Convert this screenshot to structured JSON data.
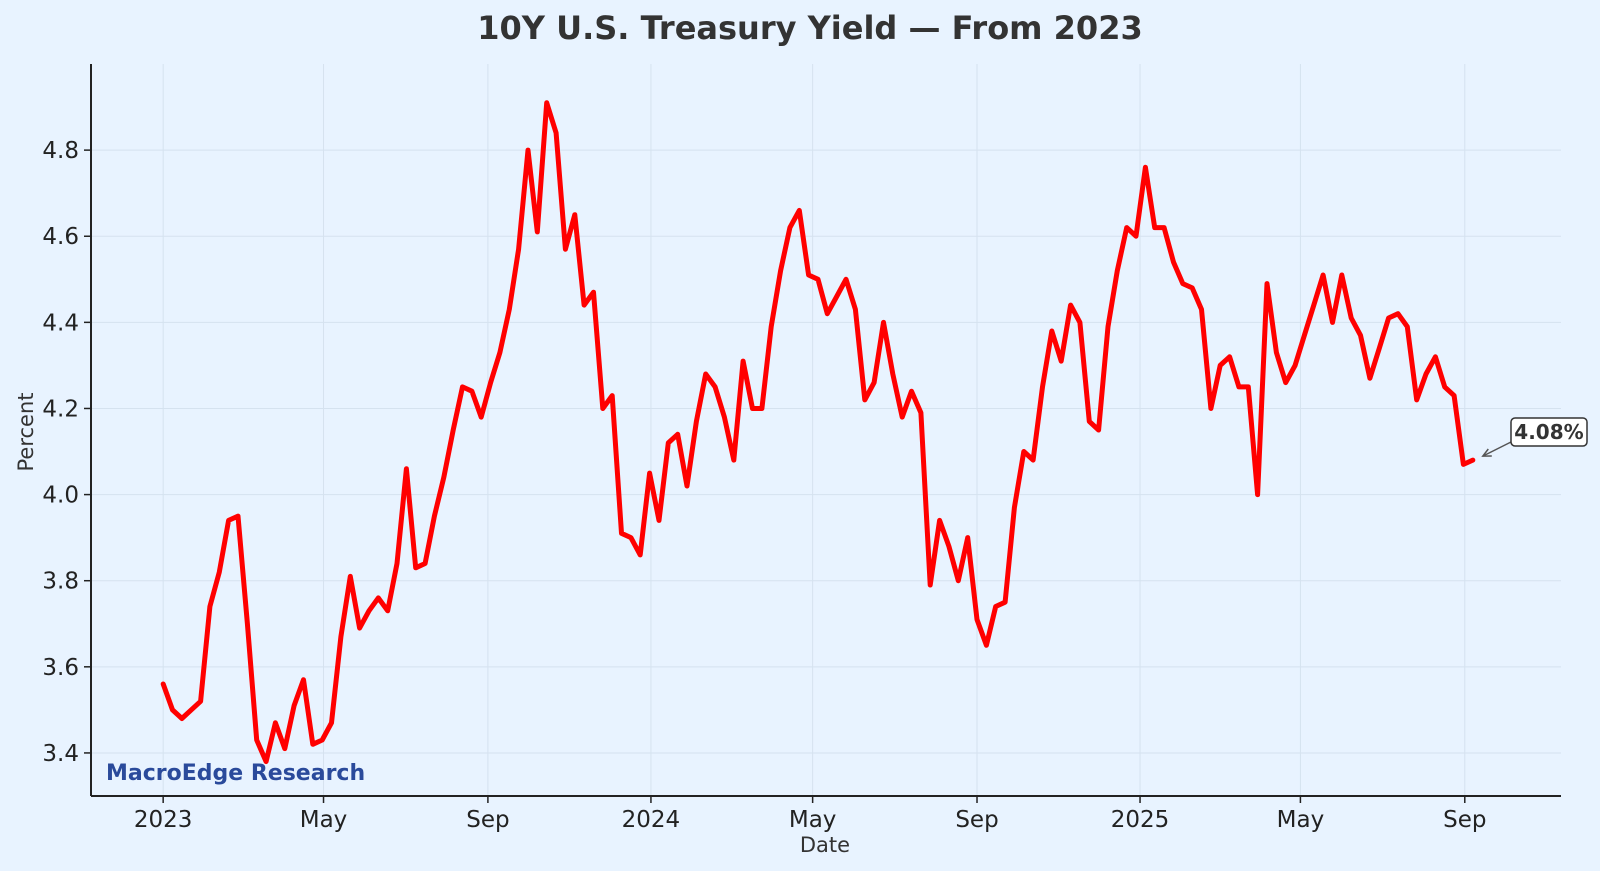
{
  "chart_data": {
    "type": "line",
    "title": "10Y U.S. Treasury Yield — From 2023",
    "xlabel": "Date",
    "ylabel": "Percent",
    "ylim": [
      3.3,
      5.0
    ],
    "xlim": [
      "2022-11-08",
      "2025-11-12"
    ],
    "yticks": [
      3.4,
      3.6,
      3.8,
      4.0,
      4.2,
      4.4,
      4.6,
      4.8
    ],
    "ytick_labels": [
      "3.4",
      "3.6",
      "3.8",
      "4.0",
      "4.2",
      "4.4",
      "4.6",
      "4.8"
    ],
    "xticks": [
      {
        "date": "2023-01-01",
        "label": "2023"
      },
      {
        "date": "2023-05-01",
        "label": "May"
      },
      {
        "date": "2023-09-01",
        "label": "Sep"
      },
      {
        "date": "2024-01-01",
        "label": "2024"
      },
      {
        "date": "2024-05-01",
        "label": "May"
      },
      {
        "date": "2024-09-01",
        "label": "Sep"
      },
      {
        "date": "2025-01-01",
        "label": "2025"
      },
      {
        "date": "2025-05-01",
        "label": "May"
      },
      {
        "date": "2025-09-01",
        "label": "Sep"
      }
    ],
    "grid": true,
    "series": [
      {
        "color": "#ff0000",
        "x": [
          "2023-01-01",
          "2023-01-08",
          "2023-01-15",
          "2023-01-22",
          "2023-01-29",
          "2023-02-05",
          "2023-02-12",
          "2023-02-19",
          "2023-02-26",
          "2023-03-05",
          "2023-03-12",
          "2023-03-19",
          "2023-03-26",
          "2023-04-02",
          "2023-04-09",
          "2023-04-16",
          "2023-04-23",
          "2023-04-30",
          "2023-05-07",
          "2023-05-14",
          "2023-05-21",
          "2023-05-28",
          "2023-06-04",
          "2023-06-11",
          "2023-06-18",
          "2023-06-25",
          "2023-07-02",
          "2023-07-09",
          "2023-07-16",
          "2023-07-23",
          "2023-07-30",
          "2023-08-06",
          "2023-08-13",
          "2023-08-20",
          "2023-08-27",
          "2023-09-03",
          "2023-09-10",
          "2023-09-17",
          "2023-09-24",
          "2023-10-01",
          "2023-10-08",
          "2023-10-15",
          "2023-10-22",
          "2023-10-29",
          "2023-11-05",
          "2023-11-12",
          "2023-11-19",
          "2023-11-26",
          "2023-12-03",
          "2023-12-10",
          "2023-12-17",
          "2023-12-24",
          "2023-12-31",
          "2024-01-07",
          "2024-01-14",
          "2024-01-21",
          "2024-01-28",
          "2024-02-04",
          "2024-02-11",
          "2024-02-18",
          "2024-02-25",
          "2024-03-03",
          "2024-03-10",
          "2024-03-17",
          "2024-03-24",
          "2024-03-31",
          "2024-04-07",
          "2024-04-14",
          "2024-04-21",
          "2024-04-28",
          "2024-05-05",
          "2024-05-12",
          "2024-05-19",
          "2024-05-26",
          "2024-06-02",
          "2024-06-09",
          "2024-06-16",
          "2024-06-23",
          "2024-06-30",
          "2024-07-07",
          "2024-07-14",
          "2024-07-21",
          "2024-07-28",
          "2024-08-04",
          "2024-08-11",
          "2024-08-18",
          "2024-08-25",
          "2024-09-01",
          "2024-09-08",
          "2024-09-15",
          "2024-09-22",
          "2024-09-29",
          "2024-10-06",
          "2024-10-13",
          "2024-10-20",
          "2024-10-27",
          "2024-11-03",
          "2024-11-10",
          "2024-11-17",
          "2024-11-24",
          "2024-12-01",
          "2024-12-08",
          "2024-12-15",
          "2024-12-22",
          "2024-12-29",
          "2025-01-05",
          "2025-01-12",
          "2025-01-19",
          "2025-01-26",
          "2025-02-02",
          "2025-02-09",
          "2025-02-16",
          "2025-02-23",
          "2025-03-02",
          "2025-03-09",
          "2025-03-16",
          "2025-03-23",
          "2025-03-30",
          "2025-04-06",
          "2025-04-13",
          "2025-04-20",
          "2025-04-27",
          "2025-05-04",
          "2025-05-11",
          "2025-05-18",
          "2025-05-25",
          "2025-06-01",
          "2025-06-08",
          "2025-06-15",
          "2025-06-22",
          "2025-06-29",
          "2025-07-06",
          "2025-07-13",
          "2025-07-20",
          "2025-07-27",
          "2025-08-03",
          "2025-08-10",
          "2025-08-17",
          "2025-08-24",
          "2025-08-31",
          "2025-09-07"
        ],
        "y": [
          3.56,
          3.5,
          3.48,
          3.5,
          3.52,
          3.74,
          3.82,
          3.94,
          3.95,
          3.7,
          3.43,
          3.38,
          3.47,
          3.41,
          3.51,
          3.57,
          3.42,
          3.43,
          3.47,
          3.67,
          3.81,
          3.69,
          3.73,
          3.76,
          3.73,
          3.84,
          4.06,
          3.83,
          3.84,
          3.95,
          4.04,
          4.15,
          4.25,
          4.24,
          4.18,
          4.26,
          4.33,
          4.43,
          4.57,
          4.8,
          4.61,
          4.91,
          4.84,
          4.57,
          4.65,
          4.44,
          4.47,
          4.2,
          4.23,
          3.91,
          3.9,
          3.86,
          4.05,
          3.94,
          4.12,
          4.14,
          4.02,
          4.17,
          4.28,
          4.25,
          4.18,
          4.08,
          4.31,
          4.2,
          4.2,
          4.39,
          4.52,
          4.62,
          4.66,
          4.51,
          4.5,
          4.42,
          4.46,
          4.5,
          4.43,
          4.22,
          4.26,
          4.4,
          4.28,
          4.18,
          4.24,
          4.19,
          3.79,
          3.94,
          3.88,
          3.8,
          3.9,
          3.71,
          3.65,
          3.74,
          3.75,
          3.97,
          4.1,
          4.08,
          4.25,
          4.38,
          4.31,
          4.44,
          4.4,
          4.17,
          4.15,
          4.39,
          4.52,
          4.62,
          4.6,
          4.76,
          4.62,
          4.62,
          4.54,
          4.49,
          4.48,
          4.43,
          4.2,
          4.3,
          4.32,
          4.25,
          4.25,
          4.0,
          4.49,
          4.33,
          4.26,
          4.3,
          4.37,
          4.44,
          4.51,
          4.4,
          4.51,
          4.41,
          4.37,
          4.27,
          4.34,
          4.41,
          4.42,
          4.39,
          4.22,
          4.28,
          4.32,
          4.25,
          4.23,
          4.07,
          4.08
        ]
      }
    ],
    "annotation": {
      "text": "4.08%",
      "x": "2025-09-07",
      "y": 4.08
    },
    "watermark": {
      "text": "MacroEdge Research",
      "color": "#2a4a9b"
    }
  }
}
